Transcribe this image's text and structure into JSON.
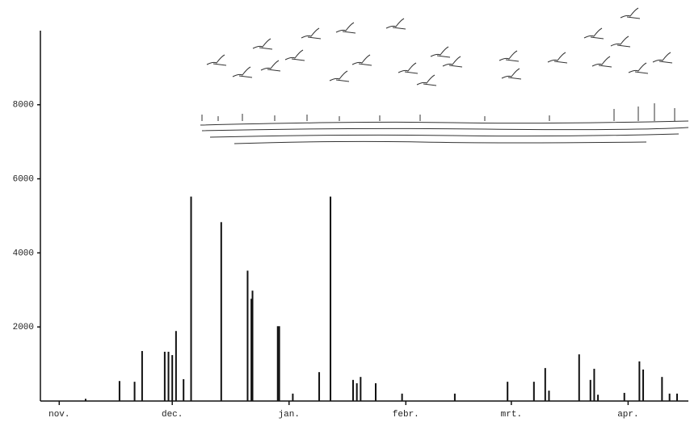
{
  "chart_data": {
    "type": "bar",
    "color": "#111111",
    "x": [
      7,
      16,
      20,
      22,
      28,
      29,
      30,
      31,
      33,
      35,
      43,
      50,
      51,
      51.3,
      58,
      58.4,
      62,
      69,
      72,
      78,
      79,
      80,
      84,
      91,
      105,
      119,
      126,
      129,
      130,
      138,
      141,
      142,
      143,
      150,
      154,
      155,
      160,
      162,
      164
    ],
    "values": [
      60,
      540,
      520,
      1350,
      1330,
      1330,
      1240,
      1890,
      590,
      5520,
      4830,
      3520,
      2760,
      2980,
      2020,
      2020,
      200,
      780,
      5520,
      570,
      480,
      650,
      480,
      200,
      200,
      520,
      520,
      890,
      280,
      1260,
      570,
      870,
      170,
      220,
      1070,
      850,
      650,
      200,
      200
    ],
    "xlim": [
      -5,
      167
    ],
    "xticks": [
      {
        "value": 0,
        "label": "nov."
      },
      {
        "value": 30,
        "label": "dec."
      },
      {
        "value": 61,
        "label": "jan."
      },
      {
        "value": 92,
        "label": "febr."
      },
      {
        "value": 120,
        "label": "mrt."
      },
      {
        "value": 151,
        "label": "apr."
      }
    ],
    "ylim": [
      0,
      10000
    ],
    "yticks": [
      2000,
      4000,
      6000,
      8000
    ]
  }
}
